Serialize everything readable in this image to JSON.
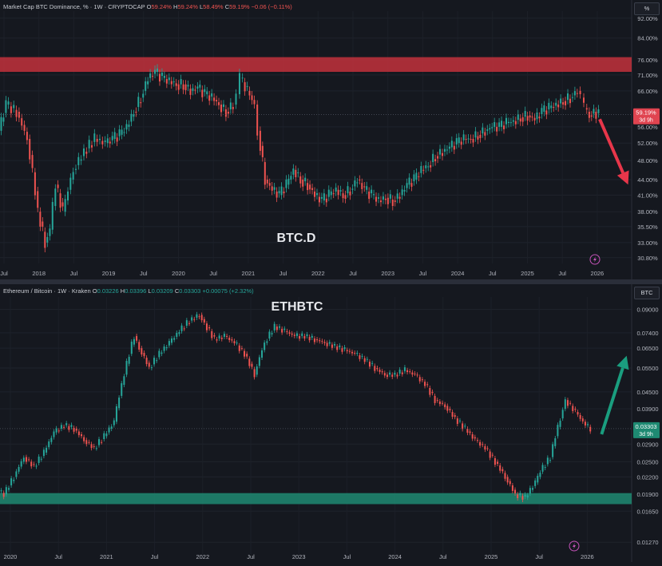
{
  "top_chart": {
    "header": {
      "title": "Market Cap BTC Dominance, % · 1W · CRYPTOCAP",
      "o_label": "O",
      "o_value": "59.24%",
      "h_label": "H",
      "h_value": "59.24%",
      "l_label": "L",
      "l_value": "58.49%",
      "c_label": "C",
      "c_value": "59.19%",
      "change": "−0.06 (−0.11%)"
    },
    "unit_badge": "%",
    "watermark": "BTC.D",
    "price_label": "59.19%",
    "countdown_label": "3d 9h",
    "colors": {
      "up": "#26a69a",
      "down": "#ef5350",
      "zone": "#c2313c",
      "arrow": "#e8364a"
    }
  },
  "bottom_chart": {
    "header": {
      "title": "Ethereum / Bitcoin · 1W · Kraken",
      "o_label": "O",
      "o_value": "0.03226",
      "h_label": "H",
      "h_value": "0.03396",
      "l_label": "L",
      "l_value": "0.03209",
      "c_label": "C",
      "c_value": "0.03303",
      "change": "+0.00075 (+2.32%)"
    },
    "unit_badge": "BTC",
    "watermark": "ETHBTC",
    "price_label": "0.03303",
    "countdown_label": "3d 9h",
    "colors": {
      "up": "#26a69a",
      "down": "#ef5350",
      "zone": "#1e8a72",
      "arrow": "#1a9e7f"
    }
  },
  "chart_data": [
    {
      "type": "line",
      "title": "Market Cap BTC Dominance, % · 1W · CRYPTOCAP",
      "x_tick_labels": [
        "Jul",
        "2018",
        "Jul",
        "2019",
        "Jul",
        "2020",
        "Jul",
        "2021",
        "Jul",
        "2022",
        "Jul",
        "2023",
        "Jul",
        "2024",
        "Jul",
        "2025",
        "Jul",
        "2026"
      ],
      "y_tick_labels": [
        "92.00%",
        "84.00%",
        "76.00%",
        "71.00%",
        "66.00%",
        "56.00%",
        "52.00%",
        "48.00%",
        "44.00%",
        "41.00%",
        "38.00%",
        "35.50%",
        "33.00%",
        "30.80%"
      ],
      "y_scale": "log",
      "ylim": [
        30,
        95
      ],
      "xlim": [
        2017.4,
        2026.3
      ],
      "resistance_zone": [
        72,
        77
      ],
      "projection_arrow": {
        "from": [
          2025.85,
          58
        ],
        "to": [
          2026.25,
          43
        ],
        "direction": "down"
      },
      "series": [
        {
          "x": [
            2017.4,
            2017.5,
            2017.65,
            2017.8,
            2017.95,
            2018.05,
            2018.12,
            2018.2,
            2018.3,
            2018.45,
            2018.6,
            2018.75,
            2018.9,
            2019.0,
            2019.1,
            2019.2,
            2019.3,
            2019.4,
            2019.5,
            2019.6,
            2019.7,
            2019.8,
            2019.9,
            2020.0,
            2020.1,
            2020.2,
            2020.3,
            2020.4,
            2020.5,
            2020.6,
            2020.7,
            2020.75,
            2020.8,
            2020.9,
            2021.0,
            2021.05,
            2021.15,
            2021.25,
            2021.35,
            2021.45,
            2021.55,
            2021.65,
            2021.75,
            2021.85,
            2021.95,
            2022.05,
            2022.15,
            2022.25,
            2022.35,
            2022.45,
            2022.55,
            2022.65,
            2022.75,
            2022.85,
            2022.95,
            2023.05,
            2023.15,
            2023.25,
            2023.35,
            2023.45,
            2023.55,
            2023.65,
            2023.75,
            2023.85,
            2023.95,
            2024.05,
            2024.15,
            2024.25,
            2024.35,
            2024.45,
            2024.55,
            2024.65,
            2024.75,
            2024.85,
            2024.95,
            2025.05,
            2025.15,
            2025.25,
            2025.35,
            2025.45,
            2025.55,
            2025.6,
            2025.65,
            2025.72,
            2025.78,
            2025.85
          ],
          "values": [
            55,
            62,
            60,
            53,
            38,
            33,
            35,
            43,
            38,
            46,
            50,
            53,
            52,
            53,
            54,
            56,
            60,
            64,
            70,
            72,
            70,
            69,
            68,
            68,
            66,
            67,
            65,
            64,
            62,
            60,
            62,
            65,
            70,
            66,
            62,
            55,
            44,
            42,
            41,
            43,
            46,
            44,
            43,
            41,
            40,
            41,
            42,
            41,
            42,
            44,
            42,
            41,
            40,
            40.5,
            40,
            41,
            43,
            44,
            46,
            47,
            49,
            50,
            51,
            52,
            53,
            53,
            54,
            55,
            56,
            56,
            57,
            57.5,
            58.5,
            59,
            58,
            60,
            61,
            62,
            63,
            64,
            66,
            64,
            61,
            59,
            60,
            59.19
          ]
        }
      ]
    },
    {
      "type": "line",
      "title": "Ethereum / Bitcoin · 1W · Kraken",
      "x_tick_labels": [
        "2020",
        "Jul",
        "2021",
        "Jul",
        "2022",
        "Jul",
        "2023",
        "Jul",
        "2024",
        "Jul",
        "2025",
        "Jul",
        "2026"
      ],
      "y_tick_labels": [
        "0.09000",
        "0.07400",
        "0.06500",
        "0.05500",
        "0.04500",
        "0.03900",
        "0.02900",
        "0.02500",
        "0.02200",
        "0.01900",
        "0.01650",
        "0.01270"
      ],
      "y_scale": "log",
      "ylim": [
        0.0115,
        0.1
      ],
      "xlim": [
        2019.95,
        2026.25
      ],
      "support_zone": [
        0.0175,
        0.0192
      ],
      "projection_arrow": {
        "from": [
          2025.95,
          0.0315
        ],
        "to": [
          2026.2,
          0.061
        ],
        "direction": "up"
      },
      "series": [
        {
          "x": [
            2019.95,
            2020.0,
            2020.1,
            2020.2,
            2020.3,
            2020.4,
            2020.5,
            2020.6,
            2020.7,
            2020.8,
            2020.9,
            2021.0,
            2021.1,
            2021.2,
            2021.3,
            2021.35,
            2021.45,
            2021.55,
            2021.65,
            2021.75,
            2021.85,
            2021.95,
            2022.0,
            2022.1,
            2022.2,
            2022.3,
            2022.4,
            2022.5,
            2022.6,
            2022.7,
            2022.8,
            2022.9,
            2023.0,
            2023.1,
            2023.2,
            2023.3,
            2023.4,
            2023.5,
            2023.6,
            2023.7,
            2023.8,
            2023.9,
            2024.0,
            2024.1,
            2024.2,
            2024.3,
            2024.4,
            2024.5,
            2024.6,
            2024.7,
            2024.8,
            2024.9,
            2025.0,
            2025.1,
            2025.2,
            2025.3,
            2025.35,
            2025.45,
            2025.55,
            2025.6,
            2025.65,
            2025.7,
            2025.8,
            2025.85
          ],
          "values": [
            0.0195,
            0.019,
            0.022,
            0.026,
            0.024,
            0.027,
            0.032,
            0.034,
            0.033,
            0.03,
            0.028,
            0.031,
            0.035,
            0.052,
            0.072,
            0.065,
            0.055,
            0.062,
            0.068,
            0.075,
            0.082,
            0.086,
            0.08,
            0.07,
            0.072,
            0.068,
            0.062,
            0.052,
            0.068,
            0.078,
            0.075,
            0.072,
            0.072,
            0.07,
            0.068,
            0.066,
            0.064,
            0.062,
            0.059,
            0.055,
            0.052,
            0.052,
            0.054,
            0.052,
            0.048,
            0.042,
            0.04,
            0.036,
            0.033,
            0.03,
            0.028,
            0.025,
            0.022,
            0.019,
            0.0185,
            0.021,
            0.023,
            0.026,
            0.036,
            0.042,
            0.04,
            0.038,
            0.034,
            0.03303
          ]
        }
      ]
    }
  ]
}
